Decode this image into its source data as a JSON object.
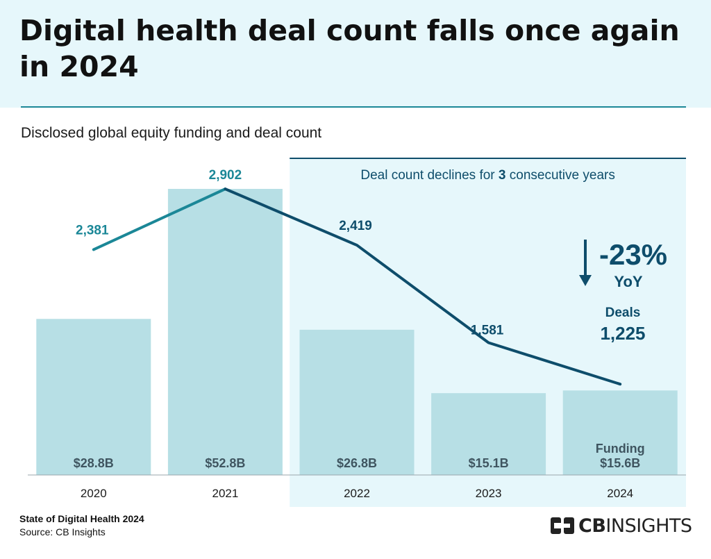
{
  "title": "Digital health deal count falls once again in 2024",
  "subtitle": "Disclosed global equity funding and deal count",
  "chart_data": {
    "type": "bar",
    "categories": [
      "2020",
      "2021",
      "2022",
      "2023",
      "2024"
    ],
    "series": [
      {
        "name": "Funding",
        "unit": "$B",
        "values": [
          28.8,
          52.8,
          26.8,
          15.1,
          15.6
        ],
        "labels": [
          "$28.8B",
          "$52.8B",
          "$26.8B",
          "$15.1B",
          "$15.6B"
        ],
        "color": "#b7dfe5"
      },
      {
        "name": "Deals",
        "type": "line",
        "values": [
          2381,
          2902,
          2419,
          1581,
          1225
        ],
        "labels": [
          "2,381",
          "2,902",
          "2,419",
          "1,581",
          "1,225"
        ],
        "color": "#0e4d6b",
        "color_early": "#1b8797"
      }
    ],
    "funding_ylim": [
      0,
      55
    ],
    "deals_ylim": [
      0,
      3100
    ],
    "highlight": {
      "label_pre": "Deal count declines for ",
      "label_bold": "3",
      "label_post": " consecutive years",
      "start_index": 2,
      "color": "#e6f7fb",
      "rule_color": "#0e4d6b"
    },
    "annotation": {
      "change": "-23%",
      "period": "YoY",
      "deals_label": "Deals",
      "funding_label": "Funding"
    }
  },
  "footer": {
    "report": "State of Digital Health 2024",
    "source": "Source: CB Insights"
  },
  "brand": {
    "left": "CB",
    "right": "INSIGHTS"
  }
}
